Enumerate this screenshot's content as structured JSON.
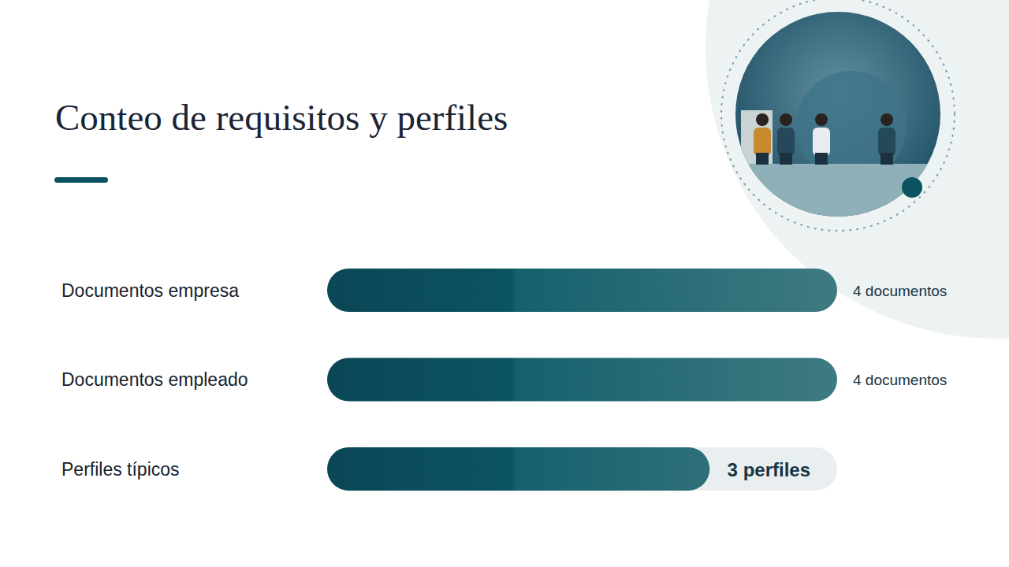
{
  "chart_data": {
    "type": "bar",
    "orientation": "horizontal",
    "title": "Conteo de requisitos y perfiles",
    "categories": [
      "Documentos empresa",
      "Documentos empleado",
      "Perfiles típicos"
    ],
    "values": [
      4,
      4,
      3
    ],
    "value_labels": [
      "4 documentos",
      "4 documentos",
      "3 perfiles"
    ],
    "xlim": [
      0,
      4
    ],
    "color": "#0b5361",
    "data_labels": true,
    "tick_labels": "y",
    "grid": false
  }
}
